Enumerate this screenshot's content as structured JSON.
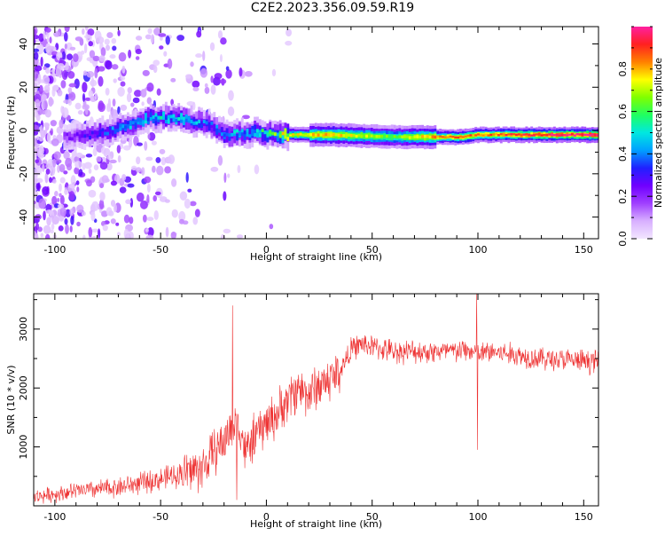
{
  "title": "C2E2.2023.356.09.59.R19",
  "colors": {
    "snr_line": "#ee3333",
    "axis": "#000000",
    "colormap": [
      "#f2e6ff",
      "#d8b0ff",
      "#a040ff",
      "#7000ff",
      "#2020ff",
      "#00a0ff",
      "#00e8e0",
      "#20ff60",
      "#80ff00",
      "#ffff00",
      "#ff8000",
      "#ff2020",
      "#ff20a0"
    ]
  },
  "chart_data": [
    {
      "type": "heatmap",
      "xlabel": "Height of straight line (km)",
      "ylabel": "Frequency (Hz)",
      "xlim": [
        -110,
        157
      ],
      "ylim": [
        -50,
        48
      ],
      "xticks": [
        -100,
        -50,
        0,
        50,
        100,
        150
      ],
      "yticks": [
        -40,
        -20,
        0,
        20,
        40
      ],
      "colorbar": {
        "label": "Normalized spectral amplitude",
        "range": [
          0,
          1
        ],
        "ticks": [
          "0.0",
          "0.2",
          "0.4",
          "0.6",
          "0.8"
        ]
      },
      "ridge": {
        "description_points_x": [
          -95,
          -85,
          -70,
          -55,
          -45,
          -35,
          -28,
          -20,
          -5,
          5,
          10,
          30,
          60,
          80,
          93,
          98,
          110,
          125,
          157
        ],
        "frequency_hz": [
          -3,
          -2,
          1,
          6,
          6,
          4,
          3,
          -2,
          -1,
          -2,
          -2,
          -2,
          -3,
          -3,
          -3,
          -2,
          -2,
          -2,
          -2
        ],
        "amplitude": [
          0.2,
          0.3,
          0.4,
          0.45,
          0.5,
          0.45,
          0.4,
          0.4,
          0.5,
          0.6,
          0.75,
          0.8,
          0.65,
          0.85,
          0.9,
          0.85,
          0.9,
          0.95,
          1.0
        ]
      }
    },
    {
      "type": "line",
      "xlabel": "Height of straight line (km)",
      "ylabel": "SNR (10 * v/v)",
      "xlim": [
        -110,
        157
      ],
      "ylim": [
        0,
        3600
      ],
      "xticks": [
        -100,
        -50,
        0,
        50,
        100,
        150
      ],
      "yticks": [
        1000,
        2000,
        3000
      ],
      "series": [
        {
          "x": [
            -110,
            -100,
            -90,
            -80,
            -70,
            -60,
            -50,
            -40,
            -30,
            -25,
            -20,
            -15,
            -12,
            -10,
            -5,
            0,
            5,
            10,
            15,
            20,
            25,
            30,
            35,
            40,
            45,
            50,
            60,
            70,
            80,
            90,
            95,
            100,
            105,
            110,
            120,
            130,
            140,
            150,
            157
          ],
          "y": [
            150,
            200,
            250,
            280,
            320,
            380,
            450,
            550,
            650,
            900,
            1100,
            1400,
            1300,
            900,
            1200,
            1400,
            1550,
            1800,
            2000,
            1900,
            2050,
            2150,
            2300,
            2650,
            2750,
            2700,
            2620,
            2620,
            2620,
            2620,
            2650,
            2550,
            2620,
            2600,
            2550,
            2500,
            2480,
            2450,
            2450
          ],
          "spikes": [
            {
              "x": -16,
              "y": 3400
            },
            {
              "x": -14,
              "y": 100
            },
            {
              "x": 99.5,
              "y": 3600
            },
            {
              "x": 99.8,
              "y": 950
            }
          ]
        }
      ]
    }
  ]
}
